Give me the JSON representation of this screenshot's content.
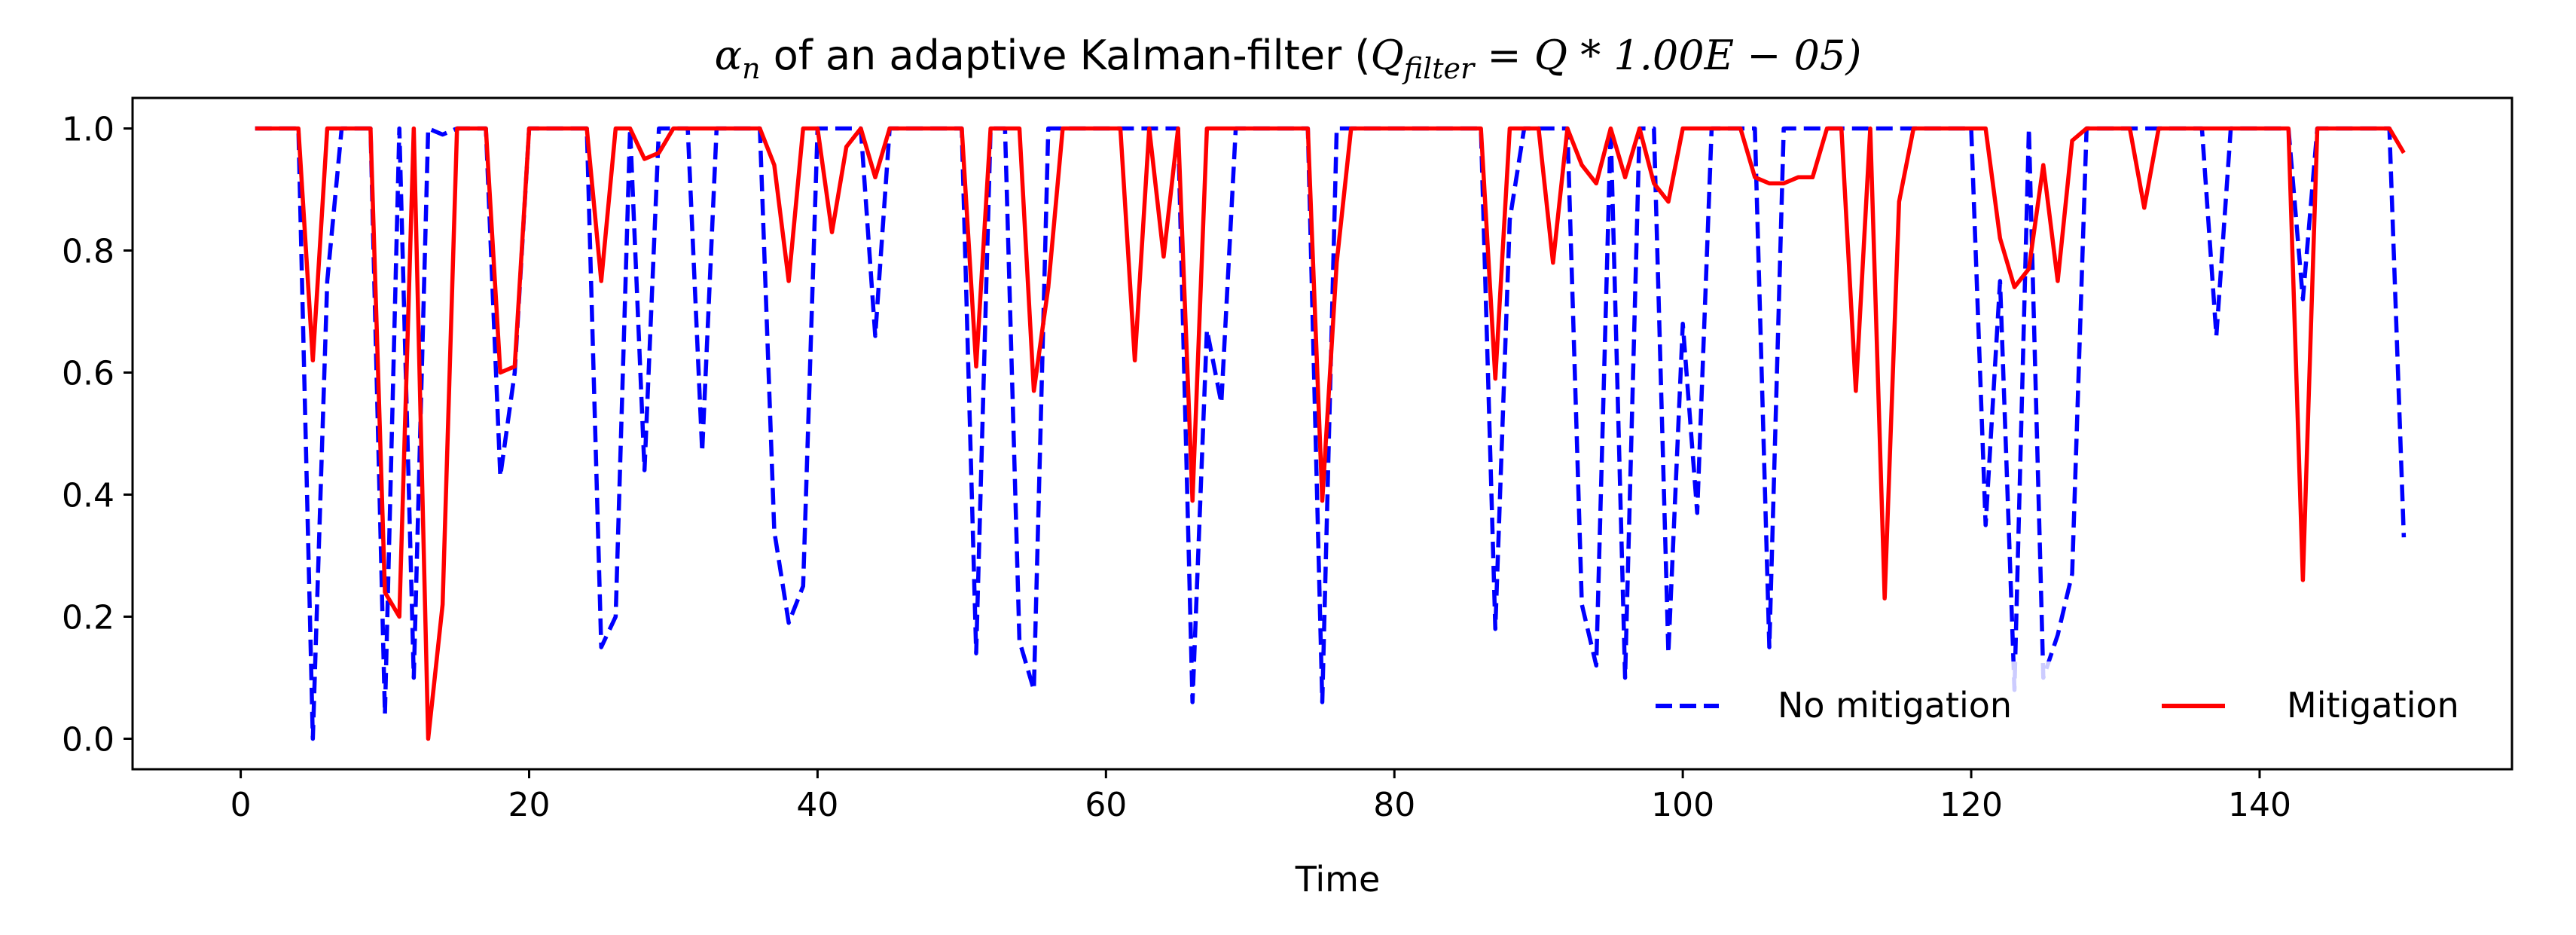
{
  "chart_data": {
    "type": "line",
    "title": {
      "prefix_symbol": "α",
      "prefix_sub": "n",
      "text": " of an adaptive Kalman-filter (",
      "q_filter": "Q",
      "q_filter_sub": "filter",
      "rest": " = Q * 1.00E − 05)"
    },
    "xlabel": "Time",
    "ylabel": "",
    "xlim": [
      -7.5,
      157.5
    ],
    "ylim": [
      -0.05,
      1.05
    ],
    "xticks": [
      0,
      20,
      40,
      60,
      80,
      100,
      120,
      140
    ],
    "yticks": [
      0.0,
      0.2,
      0.4,
      0.6,
      0.8,
      1.0
    ],
    "xtick_labels": [
      "0",
      "20",
      "40",
      "60",
      "80",
      "100",
      "120",
      "140"
    ],
    "ytick_labels": [
      "0.0",
      "0.2",
      "0.4",
      "0.6",
      "0.8",
      "1.0"
    ],
    "legend_position": "lower-right",
    "series": [
      {
        "name": "No mitigation",
        "color": "#0000ff",
        "style": "dashed",
        "x": [
          1,
          2,
          3,
          4,
          5,
          6,
          7,
          8,
          9,
          10,
          11,
          12,
          13,
          14,
          15,
          16,
          17,
          18,
          19,
          20,
          21,
          22,
          23,
          24,
          25,
          26,
          27,
          28,
          29,
          30,
          31,
          32,
          33,
          34,
          35,
          36,
          37,
          38,
          39,
          40,
          41,
          42,
          43,
          44,
          45,
          46,
          47,
          48,
          49,
          50,
          51,
          52,
          53,
          54,
          55,
          56,
          57,
          58,
          59,
          60,
          61,
          62,
          63,
          64,
          65,
          66,
          67,
          68,
          69,
          70,
          71,
          72,
          73,
          74,
          75,
          76,
          77,
          78,
          79,
          80,
          81,
          82,
          83,
          84,
          85,
          86,
          87,
          88,
          89,
          90,
          91,
          92,
          93,
          94,
          95,
          96,
          97,
          98,
          99,
          100,
          101,
          102,
          103,
          104,
          105,
          106,
          107,
          108,
          109,
          110,
          111,
          112,
          113,
          114,
          115,
          116,
          117,
          118,
          119,
          120,
          121,
          122,
          123,
          124,
          125,
          126,
          127,
          128,
          129,
          130,
          131,
          132,
          133,
          134,
          135,
          136,
          137,
          138,
          139,
          140,
          141,
          142,
          143,
          144,
          145,
          146,
          147,
          148,
          149,
          150
        ],
        "values": [
          1.0,
          1.0,
          1.0,
          1.0,
          0.0,
          0.75,
          1.0,
          1.0,
          1.0,
          0.04,
          1.0,
          0.1,
          1.0,
          0.99,
          1.0,
          1.0,
          1.0,
          0.43,
          0.6,
          1.0,
          1.0,
          1.0,
          1.0,
          1.0,
          0.15,
          0.2,
          1.0,
          0.44,
          1.0,
          1.0,
          1.0,
          0.47,
          1.0,
          1.0,
          1.0,
          1.0,
          0.34,
          0.19,
          0.25,
          1.0,
          1.0,
          1.0,
          1.0,
          0.66,
          1.0,
          1.0,
          1.0,
          1.0,
          1.0,
          1.0,
          0.14,
          1.0,
          1.0,
          0.16,
          0.08,
          1.0,
          1.0,
          1.0,
          1.0,
          1.0,
          1.0,
          1.0,
          1.0,
          1.0,
          1.0,
          0.06,
          0.67,
          0.55,
          1.0,
          1.0,
          1.0,
          1.0,
          1.0,
          1.0,
          0.06,
          1.0,
          1.0,
          1.0,
          1.0,
          1.0,
          1.0,
          1.0,
          1.0,
          1.0,
          1.0,
          1.0,
          0.18,
          0.85,
          1.0,
          1.0,
          1.0,
          1.0,
          0.22,
          0.12,
          1.0,
          0.1,
          1.0,
          1.0,
          0.14,
          0.68,
          0.37,
          1.0,
          1.0,
          1.0,
          1.0,
          0.15,
          1.0,
          1.0,
          1.0,
          1.0,
          1.0,
          1.0,
          1.0,
          1.0,
          1.0,
          1.0,
          1.0,
          1.0,
          1.0,
          1.0,
          0.35,
          0.75,
          0.08,
          1.0,
          0.1,
          0.17,
          0.27,
          1.0,
          1.0,
          1.0,
          1.0,
          1.0,
          1.0,
          1.0,
          1.0,
          1.0,
          0.66,
          1.0,
          1.0,
          1.0,
          1.0,
          1.0,
          0.72,
          1.0,
          1.0,
          1.0,
          1.0,
          1.0,
          1.0,
          0.33
        ]
      },
      {
        "name": "Mitigation",
        "color": "#ff0000",
        "style": "solid",
        "x": [
          1,
          2,
          3,
          4,
          5,
          6,
          7,
          8,
          9,
          10,
          11,
          12,
          13,
          14,
          15,
          16,
          17,
          18,
          19,
          20,
          21,
          22,
          23,
          24,
          25,
          26,
          27,
          28,
          29,
          30,
          31,
          32,
          33,
          34,
          35,
          36,
          37,
          38,
          39,
          40,
          41,
          42,
          43,
          44,
          45,
          46,
          47,
          48,
          49,
          50,
          51,
          52,
          53,
          54,
          55,
          56,
          57,
          58,
          59,
          60,
          61,
          62,
          63,
          64,
          65,
          66,
          67,
          68,
          69,
          70,
          71,
          72,
          73,
          74,
          75,
          76,
          77,
          78,
          79,
          80,
          81,
          82,
          83,
          84,
          85,
          86,
          87,
          88,
          89,
          90,
          91,
          92,
          93,
          94,
          95,
          96,
          97,
          98,
          99,
          100,
          101,
          102,
          103,
          104,
          105,
          106,
          107,
          108,
          109,
          110,
          111,
          112,
          113,
          114,
          115,
          116,
          117,
          118,
          119,
          120,
          121,
          122,
          123,
          124,
          125,
          126,
          127,
          128,
          129,
          130,
          131,
          132,
          133,
          134,
          135,
          136,
          137,
          138,
          139,
          140,
          141,
          142,
          143,
          144,
          145,
          146,
          147,
          148,
          149,
          150
        ],
        "values": [
          1.0,
          1.0,
          1.0,
          1.0,
          0.62,
          1.0,
          1.0,
          1.0,
          1.0,
          0.24,
          0.2,
          1.0,
          0.0,
          0.22,
          1.0,
          1.0,
          1.0,
          0.6,
          0.61,
          1.0,
          1.0,
          1.0,
          1.0,
          1.0,
          0.75,
          1.0,
          1.0,
          0.95,
          0.96,
          1.0,
          1.0,
          1.0,
          1.0,
          1.0,
          1.0,
          1.0,
          0.94,
          0.75,
          1.0,
          1.0,
          0.83,
          0.97,
          1.0,
          0.92,
          1.0,
          1.0,
          1.0,
          1.0,
          1.0,
          1.0,
          0.61,
          1.0,
          1.0,
          1.0,
          0.57,
          0.74,
          1.0,
          1.0,
          1.0,
          1.0,
          1.0,
          0.62,
          1.0,
          0.79,
          1.0,
          0.39,
          1.0,
          1.0,
          1.0,
          1.0,
          1.0,
          1.0,
          1.0,
          1.0,
          0.39,
          0.78,
          1.0,
          1.0,
          1.0,
          1.0,
          1.0,
          1.0,
          1.0,
          1.0,
          1.0,
          1.0,
          0.59,
          1.0,
          1.0,
          1.0,
          0.78,
          1.0,
          0.94,
          0.91,
          1.0,
          0.92,
          1.0,
          0.91,
          0.88,
          1.0,
          1.0,
          1.0,
          1.0,
          1.0,
          0.92,
          0.91,
          0.91,
          0.92,
          0.92,
          1.0,
          1.0,
          0.57,
          1.0,
          0.23,
          0.88,
          1.0,
          1.0,
          1.0,
          1.0,
          1.0,
          1.0,
          0.82,
          0.74,
          0.77,
          0.94,
          0.75,
          0.98,
          1.0,
          1.0,
          1.0,
          1.0,
          0.87,
          1.0,
          1.0,
          1.0,
          1.0,
          1.0,
          1.0,
          1.0,
          1.0,
          1.0,
          1.0,
          0.26,
          1.0,
          1.0,
          1.0,
          1.0,
          1.0,
          1.0,
          0.96
        ]
      }
    ]
  }
}
